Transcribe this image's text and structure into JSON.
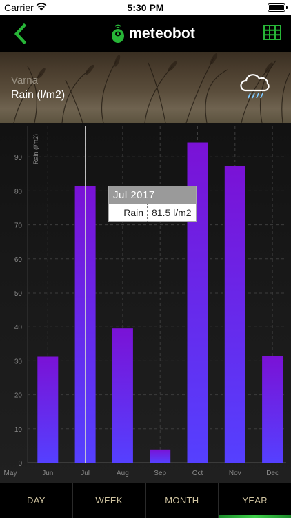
{
  "status_bar": {
    "carrier": "Carrier",
    "time": "5:30 PM"
  },
  "navbar": {
    "logo_text": "meteobot",
    "accent_color": "#27b537"
  },
  "header": {
    "city": "Varna",
    "metric": "Rain (l/m2)",
    "weather_icon": "rain-cloud-icon"
  },
  "chart_data": {
    "type": "bar",
    "ylabel": "Rain (l/m2)",
    "ylim": [
      0,
      100
    ],
    "yticks": [
      0,
      10,
      20,
      30,
      40,
      50,
      60,
      70,
      80,
      90
    ],
    "tick_labels": [
      "May",
      "Jun",
      "Jul",
      "Aug",
      "Sep",
      "Oct",
      "Nov",
      "Dec"
    ],
    "categories": [
      "Jun",
      "Jul",
      "Aug",
      "Sep",
      "Oct",
      "Nov",
      "Dec"
    ],
    "values": [
      31.2,
      81.5,
      39.6,
      3.9,
      94.2,
      87.4,
      31.3
    ],
    "grid": true,
    "highlighted_category": "Jul",
    "bar_color_top": "#7a12d6",
    "bar_color_bottom": "#5540ff"
  },
  "tooltip": {
    "title": "Jul 2017",
    "label": "Rain",
    "value": "81.5 l/m2"
  },
  "tabs": [
    {
      "label": "DAY",
      "active": false
    },
    {
      "label": "WEEK",
      "active": false
    },
    {
      "label": "MONTH",
      "active": false
    },
    {
      "label": "YEAR",
      "active": true
    }
  ]
}
